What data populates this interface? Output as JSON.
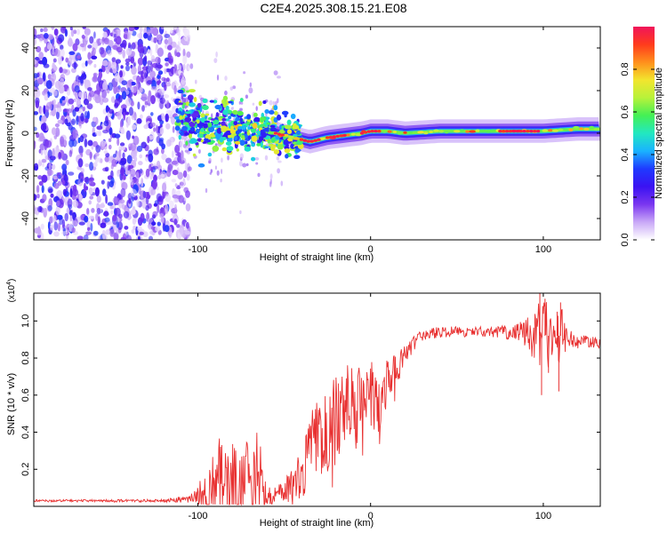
{
  "title": "C2E4.2025.308.15.21.E08",
  "chart_data": [
    {
      "type": "heatmap",
      "xlabel": "Height of straight line (km)",
      "ylabel": "Frequency (Hz)",
      "xlim": [
        -195,
        133
      ],
      "ylim": [
        -50,
        50
      ],
      "xticks": [
        -100,
        0,
        100
      ],
      "yticks": [
        -40,
        -20,
        0,
        20,
        40
      ],
      "noise_region_x": [
        -195,
        -105
      ],
      "ridge": {
        "x": [
          -115,
          -100,
          -85,
          -70,
          -55,
          -45,
          -35,
          -25,
          -15,
          -5,
          0,
          10,
          20,
          40,
          60,
          80,
          100,
          120,
          133
        ],
        "y": [
          8,
          5,
          3,
          1,
          0,
          -2,
          -4,
          -2,
          -1,
          0,
          1,
          1,
          0,
          1,
          1,
          1,
          1,
          2,
          2
        ]
      },
      "colorbar": {
        "label": "Normalized spectral amplitude",
        "range": [
          0,
          1
        ],
        "ticks": [
          "0.0",
          "0.2",
          "0.4",
          "0.6",
          "0.8"
        ],
        "colors": [
          "#ffffff",
          "#c9a8f7",
          "#7a36f0",
          "#3a12f2",
          "#1f3aff",
          "#1ab3ff",
          "#22e8c0",
          "#44f055",
          "#b8f23a",
          "#f2e52e",
          "#ff8f1c",
          "#ff3b1c",
          "#f0145a"
        ]
      }
    },
    {
      "type": "line",
      "xlabel": "Height of straight line (km)",
      "ylabel": "SNR (10 * v/v)",
      "y_multiplier": "(x10",
      "y_multiplier_exp": "4",
      "y_multiplier_close": ")",
      "xlim": [
        -195,
        133
      ],
      "ylim": [
        0,
        1.15
      ],
      "xticks": [
        -100,
        0,
        100
      ],
      "yticks": [
        0.2,
        0.4,
        0.6,
        0.8,
        1.0
      ],
      "ytick_labels": [
        "0.2",
        "0.4",
        "0.6",
        "0.8",
        "1.0"
      ],
      "color": "#e83030",
      "envelope": {
        "x": [
          -195,
          -120,
          -105,
          -100,
          -95,
          -90,
          -85,
          -80,
          -75,
          -70,
          -65,
          -60,
          -55,
          -50,
          -45,
          -40,
          -35,
          -30,
          -25,
          -20,
          -15,
          -10,
          -5,
          0,
          5,
          10,
          15,
          20,
          25,
          30,
          35,
          40,
          50,
          60,
          70,
          80,
          90,
          95,
          98,
          100,
          102,
          105,
          108,
          110,
          115,
          120,
          125,
          133
        ],
        "base": [
          0.03,
          0.03,
          0.04,
          0.06,
          0.08,
          0.12,
          0.14,
          0.12,
          0.14,
          0.15,
          0.11,
          0.06,
          0.06,
          0.08,
          0.1,
          0.18,
          0.3,
          0.38,
          0.4,
          0.45,
          0.48,
          0.52,
          0.5,
          0.58,
          0.6,
          0.66,
          0.72,
          0.82,
          0.88,
          0.92,
          0.93,
          0.94,
          0.94,
          0.94,
          0.94,
          0.94,
          0.93,
          0.92,
          0.92,
          0.92,
          0.93,
          0.92,
          0.91,
          0.92,
          0.9,
          0.89,
          0.89,
          0.88
        ],
        "amp": [
          0.006,
          0.008,
          0.02,
          0.06,
          0.12,
          0.18,
          0.22,
          0.2,
          0.24,
          0.24,
          0.16,
          0.06,
          0.05,
          0.07,
          0.1,
          0.14,
          0.2,
          0.26,
          0.24,
          0.26,
          0.24,
          0.26,
          0.24,
          0.22,
          0.2,
          0.14,
          0.1,
          0.06,
          0.04,
          0.03,
          0.03,
          0.03,
          0.03,
          0.03,
          0.03,
          0.04,
          0.08,
          0.14,
          0.2,
          0.24,
          0.2,
          0.12,
          0.14,
          0.18,
          0.06,
          0.04,
          0.03,
          0.03
        ]
      }
    }
  ]
}
